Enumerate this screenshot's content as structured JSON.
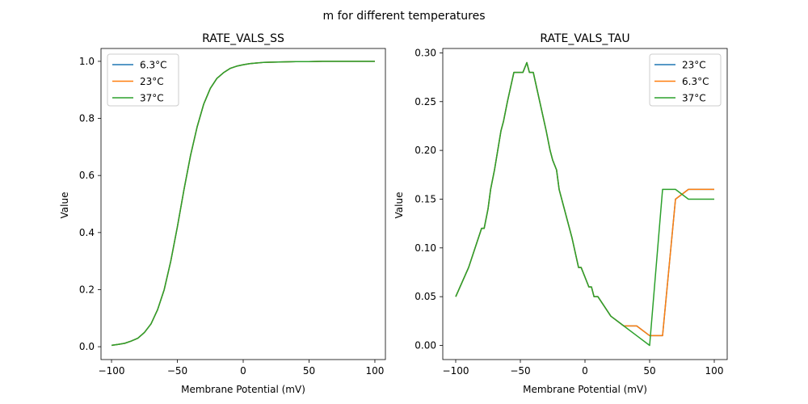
{
  "figure": {
    "suptitle": "m for different temperatures"
  },
  "chart_data": [
    {
      "type": "line",
      "title": "RATE_VALS_SS",
      "xlabel": "Membrane Potential (mV)",
      "ylabel": "Value",
      "xlim": [
        -108,
        108
      ],
      "ylim": [
        -0.045,
        1.045
      ],
      "xticks": [
        -100,
        -50,
        0,
        50,
        100
      ],
      "xtick_labels": [
        "−100",
        "−50",
        "0",
        "50",
        "100"
      ],
      "yticks": [
        0.0,
        0.2,
        0.4,
        0.6,
        0.8,
        1.0
      ],
      "ytick_labels": [
        "0.0",
        "0.2",
        "0.4",
        "0.6",
        "0.8",
        "1.0"
      ],
      "legend_position": "top-left",
      "x": [
        -100,
        -95,
        -90,
        -85,
        -80,
        -75,
        -70,
        -65,
        -60,
        -55,
        -50,
        -45,
        -40,
        -35,
        -30,
        -25,
        -20,
        -15,
        -10,
        -5,
        0,
        5,
        10,
        15,
        20,
        30,
        40,
        50,
        60,
        70,
        80,
        90,
        100
      ],
      "series": [
        {
          "name": "6.3°C",
          "color": "#1f77b4",
          "values": [
            0.005,
            0.008,
            0.012,
            0.02,
            0.03,
            0.05,
            0.08,
            0.13,
            0.2,
            0.3,
            0.42,
            0.55,
            0.67,
            0.77,
            0.85,
            0.905,
            0.94,
            0.96,
            0.975,
            0.983,
            0.988,
            0.992,
            0.994,
            0.996,
            0.997,
            0.998,
            0.999,
            0.999,
            1.0,
            1.0,
            1.0,
            1.0,
            1.0
          ]
        },
        {
          "name": "23°C",
          "color": "#ff7f0e",
          "values": [
            0.005,
            0.008,
            0.012,
            0.02,
            0.03,
            0.05,
            0.08,
            0.13,
            0.2,
            0.3,
            0.42,
            0.55,
            0.67,
            0.77,
            0.85,
            0.905,
            0.94,
            0.96,
            0.975,
            0.983,
            0.988,
            0.992,
            0.994,
            0.996,
            0.997,
            0.998,
            0.999,
            0.999,
            1.0,
            1.0,
            1.0,
            1.0,
            1.0
          ]
        },
        {
          "name": "37°C",
          "color": "#2ca02c",
          "values": [
            0.005,
            0.008,
            0.012,
            0.02,
            0.03,
            0.05,
            0.08,
            0.13,
            0.2,
            0.3,
            0.42,
            0.55,
            0.67,
            0.77,
            0.85,
            0.905,
            0.94,
            0.96,
            0.975,
            0.983,
            0.988,
            0.992,
            0.994,
            0.996,
            0.997,
            0.998,
            0.999,
            0.999,
            1.0,
            1.0,
            1.0,
            1.0,
            1.0
          ]
        }
      ]
    },
    {
      "type": "line",
      "title": "RATE_VALS_TAU",
      "xlabel": "Membrane Potential (mV)",
      "ylabel": "Value",
      "xlim": [
        -110,
        110
      ],
      "ylim": [
        -0.0145,
        0.3045
      ],
      "xticks": [
        -100,
        -50,
        0,
        50,
        100
      ],
      "xtick_labels": [
        "−100",
        "−50",
        "0",
        "50",
        "100"
      ],
      "yticks": [
        0.0,
        0.05,
        0.1,
        0.15,
        0.2,
        0.25,
        0.3
      ],
      "ytick_labels": [
        "0.00",
        "0.05",
        "0.10",
        "0.15",
        "0.20",
        "0.25",
        "0.30"
      ],
      "legend_position": "top-right",
      "series": [
        {
          "name": "23°C",
          "color": "#1f77b4",
          "x": [
            -100,
            -90,
            -80,
            -78,
            -75,
            -73,
            -70,
            -65,
            -63,
            -60,
            -55,
            -50,
            -48,
            -45,
            -43,
            -40,
            -35,
            -30,
            -27,
            -25,
            -22,
            -20,
            -10,
            -5,
            -3,
            0,
            3,
            5,
            7,
            10,
            20,
            30,
            40,
            50,
            60,
            70,
            80,
            100
          ],
          "values": [
            0.05,
            0.08,
            0.12,
            0.12,
            0.14,
            0.16,
            0.18,
            0.22,
            0.23,
            0.25,
            0.28,
            0.28,
            0.28,
            0.29,
            0.28,
            0.28,
            0.25,
            0.22,
            0.2,
            0.19,
            0.18,
            0.16,
            0.11,
            0.08,
            0.08,
            0.07,
            0.06,
            0.06,
            0.05,
            0.05,
            0.03,
            0.02,
            0.02,
            0.01,
            0.01,
            0.15,
            0.16,
            0.16
          ]
        },
        {
          "name": "6.3°C",
          "color": "#ff7f0e",
          "x": [
            -100,
            -90,
            -80,
            -78,
            -75,
            -73,
            -70,
            -65,
            -63,
            -60,
            -55,
            -50,
            -48,
            -45,
            -43,
            -40,
            -35,
            -30,
            -27,
            -25,
            -22,
            -20,
            -10,
            -5,
            -3,
            0,
            3,
            5,
            7,
            10,
            20,
            30,
            40,
            50,
            60,
            70,
            80,
            100
          ],
          "values": [
            0.05,
            0.08,
            0.12,
            0.12,
            0.14,
            0.16,
            0.18,
            0.22,
            0.23,
            0.25,
            0.28,
            0.28,
            0.28,
            0.29,
            0.28,
            0.28,
            0.25,
            0.22,
            0.2,
            0.19,
            0.18,
            0.16,
            0.11,
            0.08,
            0.08,
            0.07,
            0.06,
            0.06,
            0.05,
            0.05,
            0.03,
            0.02,
            0.02,
            0.01,
            0.01,
            0.15,
            0.16,
            0.16
          ]
        },
        {
          "name": "37°C",
          "color": "#2ca02c",
          "x": [
            -100,
            -90,
            -80,
            -78,
            -75,
            -73,
            -70,
            -65,
            -63,
            -60,
            -55,
            -50,
            -48,
            -45,
            -43,
            -40,
            -35,
            -30,
            -27,
            -25,
            -22,
            -20,
            -10,
            -5,
            -3,
            0,
            3,
            5,
            7,
            10,
            20,
            30,
            40,
            50,
            60,
            70,
            80,
            100
          ],
          "values": [
            0.05,
            0.08,
            0.12,
            0.12,
            0.14,
            0.16,
            0.18,
            0.22,
            0.23,
            0.25,
            0.28,
            0.28,
            0.28,
            0.29,
            0.28,
            0.28,
            0.25,
            0.22,
            0.2,
            0.19,
            0.18,
            0.16,
            0.11,
            0.08,
            0.08,
            0.07,
            0.06,
            0.06,
            0.05,
            0.05,
            0.03,
            0.02,
            0.01,
            0.0,
            0.16,
            0.16,
            0.15,
            0.15
          ]
        }
      ]
    }
  ]
}
